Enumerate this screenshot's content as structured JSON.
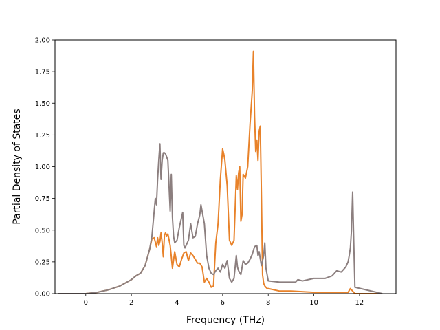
{
  "chart_data": {
    "type": "line",
    "title": "",
    "xlabel": "Frequency (THz)",
    "ylabel": "Partial Density of States",
    "xlim": [
      -1.35,
      13.6
    ],
    "ylim": [
      0,
      2.0
    ],
    "xticks": [
      0,
      2,
      4,
      6,
      8,
      10,
      12
    ],
    "yticks": [
      0.0,
      0.25,
      0.5,
      0.75,
      1.0,
      1.25,
      1.5,
      1.75,
      2.0
    ],
    "xtick_labels": [
      "0",
      "2",
      "4",
      "6",
      "8",
      "10",
      "12"
    ],
    "ytick_labels": [
      "0.00",
      "0.25",
      "0.50",
      "0.75",
      "1.00",
      "1.25",
      "1.50",
      "1.75",
      "2.00"
    ],
    "grid": false,
    "legend": "none",
    "series": [
      {
        "color": "#e8822a",
        "x": [
          -1.2,
          0.0,
          0.5,
          1.0,
          1.5,
          2.0,
          2.2,
          2.4,
          2.6,
          2.8,
          2.9,
          3.0,
          3.1,
          3.15,
          3.2,
          3.25,
          3.3,
          3.35,
          3.4,
          3.45,
          3.5,
          3.55,
          3.6,
          3.7,
          3.8,
          3.9,
          4.0,
          4.1,
          4.2,
          4.3,
          4.4,
          4.5,
          4.6,
          4.7,
          4.8,
          4.9,
          5.0,
          5.1,
          5.2,
          5.3,
          5.4,
          5.5,
          5.6,
          5.7,
          5.8,
          5.9,
          6.0,
          6.05,
          6.1,
          6.2,
          6.3,
          6.4,
          6.5,
          6.6,
          6.65,
          6.7,
          6.75,
          6.8,
          6.85,
          6.9,
          7.0,
          7.1,
          7.2,
          7.3,
          7.35,
          7.4,
          7.45,
          7.5,
          7.55,
          7.6,
          7.65,
          7.7,
          7.75,
          7.8,
          7.85,
          7.9,
          7.95,
          8.0,
          8.5,
          9.0,
          10.0,
          11.0,
          11.5,
          11.6,
          11.7,
          11.8,
          13.0
        ],
        "y": [
          0.0,
          0.0,
          0.01,
          0.03,
          0.06,
          0.11,
          0.14,
          0.16,
          0.22,
          0.35,
          0.43,
          0.44,
          0.37,
          0.44,
          0.38,
          0.41,
          0.48,
          0.4,
          0.29,
          0.46,
          0.48,
          0.45,
          0.47,
          0.38,
          0.2,
          0.33,
          0.23,
          0.21,
          0.27,
          0.32,
          0.33,
          0.26,
          0.32,
          0.3,
          0.27,
          0.24,
          0.24,
          0.21,
          0.09,
          0.12,
          0.09,
          0.05,
          0.06,
          0.4,
          0.55,
          0.9,
          1.14,
          1.1,
          1.05,
          0.85,
          0.42,
          0.38,
          0.42,
          0.93,
          0.82,
          0.95,
          1.0,
          0.57,
          0.62,
          0.94,
          0.91,
          1.0,
          1.33,
          1.6,
          1.91,
          1.4,
          1.12,
          1.21,
          1.05,
          1.28,
          1.32,
          0.78,
          0.15,
          0.08,
          0.06,
          0.05,
          0.04,
          0.04,
          0.02,
          0.02,
          0.01,
          0.01,
          0.01,
          0.04,
          0.02,
          0.0,
          0.0
        ]
      },
      {
        "color": "#8c7f7f",
        "x": [
          -1.2,
          0.0,
          0.5,
          1.0,
          1.5,
          2.0,
          2.2,
          2.4,
          2.6,
          2.8,
          2.9,
          3.0,
          3.05,
          3.1,
          3.15,
          3.2,
          3.25,
          3.3,
          3.35,
          3.4,
          3.45,
          3.5,
          3.6,
          3.7,
          3.75,
          3.8,
          3.85,
          3.9,
          4.0,
          4.1,
          4.2,
          4.25,
          4.3,
          4.35,
          4.4,
          4.5,
          4.6,
          4.7,
          4.8,
          4.9,
          5.0,
          5.05,
          5.1,
          5.2,
          5.3,
          5.4,
          5.5,
          5.6,
          5.7,
          5.8,
          5.9,
          6.0,
          6.1,
          6.2,
          6.3,
          6.4,
          6.5,
          6.6,
          6.65,
          6.7,
          6.8,
          6.9,
          7.0,
          7.1,
          7.2,
          7.3,
          7.4,
          7.5,
          7.55,
          7.6,
          7.7,
          7.8,
          7.85,
          7.9,
          8.0,
          8.5,
          9.0,
          9.2,
          9.3,
          9.5,
          10.0,
          10.5,
          10.8,
          11.0,
          11.2,
          11.4,
          11.5,
          11.55,
          11.6,
          11.65,
          11.7,
          11.75,
          11.8,
          13.0
        ],
        "y": [
          0.0,
          0.0,
          0.01,
          0.03,
          0.06,
          0.11,
          0.14,
          0.16,
          0.22,
          0.35,
          0.45,
          0.65,
          0.75,
          0.7,
          0.9,
          1.05,
          1.18,
          0.9,
          1.05,
          1.11,
          1.11,
          1.1,
          1.05,
          0.65,
          0.94,
          0.6,
          0.45,
          0.4,
          0.42,
          0.52,
          0.6,
          0.64,
          0.38,
          0.36,
          0.38,
          0.42,
          0.55,
          0.44,
          0.45,
          0.55,
          0.62,
          0.7,
          0.65,
          0.55,
          0.3,
          0.2,
          0.16,
          0.15,
          0.18,
          0.2,
          0.17,
          0.23,
          0.2,
          0.26,
          0.12,
          0.09,
          0.12,
          0.3,
          0.21,
          0.18,
          0.15,
          0.26,
          0.23,
          0.24,
          0.27,
          0.31,
          0.37,
          0.38,
          0.3,
          0.33,
          0.22,
          0.3,
          0.4,
          0.2,
          0.1,
          0.09,
          0.09,
          0.09,
          0.11,
          0.1,
          0.12,
          0.12,
          0.14,
          0.18,
          0.17,
          0.21,
          0.25,
          0.3,
          0.36,
          0.5,
          0.8,
          0.4,
          0.05,
          0.0
        ]
      }
    ]
  }
}
